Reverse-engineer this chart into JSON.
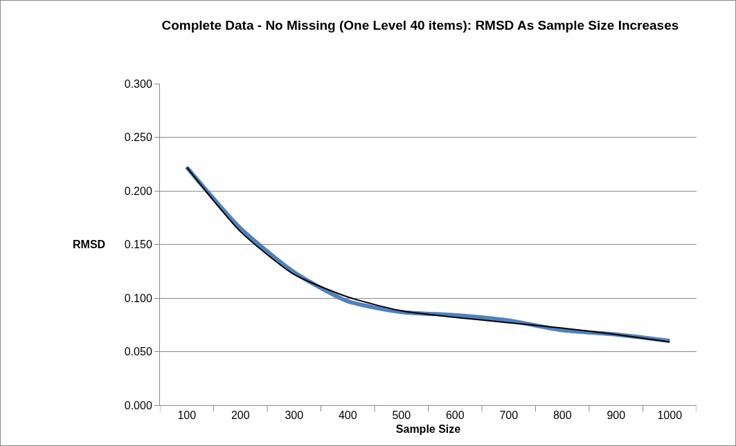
{
  "chart_data": {
    "type": "line",
    "title": "Complete Data - No Missing (One Level 40 items): RMSD As Sample Size Increases",
    "xlabel": "Sample Size",
    "ylabel": "RMSD",
    "categories": [
      "100",
      "200",
      "300",
      "400",
      "500",
      "600",
      "700",
      "800",
      "900",
      "1000"
    ],
    "series": [
      {
        "color": "#4f81bd",
        "values": [
          0.222,
          0.165,
          0.124,
          0.097,
          0.087,
          0.084,
          0.079,
          0.07,
          0.066,
          0.06
        ]
      },
      {
        "color": "#000000",
        "values": [
          0.222,
          0.162,
          0.122,
          0.101,
          0.088,
          0.082,
          0.077,
          0.072,
          0.066,
          0.059
        ]
      }
    ],
    "ylim": [
      0,
      0.3
    ],
    "yticks": [
      {
        "value": 0,
        "label": "0.000"
      },
      {
        "value": 0.05,
        "label": "0.050"
      },
      {
        "value": 0.1,
        "label": "0.100"
      },
      {
        "value": 0.15,
        "label": "0.150"
      },
      {
        "value": 0.2,
        "label": "0.200"
      },
      {
        "value": 0.25,
        "label": "0.250"
      },
      {
        "value": 0.3,
        "label": "0.300"
      }
    ],
    "grid": "y",
    "marker": "none",
    "line_style": "solid"
  }
}
